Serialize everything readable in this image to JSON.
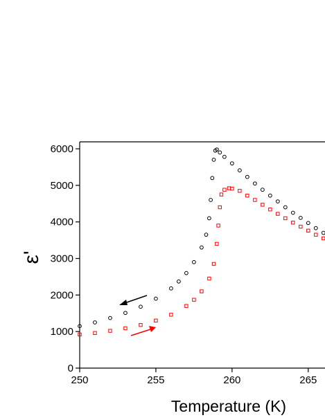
{
  "chart_data": {
    "type": "scatter",
    "xlabel": "Temperature (K)",
    "ylabel": "ε'",
    "xlim": [
      250,
      266.1
    ],
    "ylim": [
      0,
      6190
    ],
    "xticks": [
      250,
      255,
      260,
      265
    ],
    "yticks": [
      0,
      1000,
      2000,
      3000,
      4000,
      5000,
      6000
    ],
    "series": [
      {
        "color": "#000000",
        "marker": "circle",
        "x": [
          250,
          251,
          252,
          253,
          254,
          255,
          256,
          256.5,
          257,
          257.5,
          258,
          258.3,
          258.5,
          258.6,
          258.7,
          258.8,
          258.9,
          259,
          259.2,
          259.5,
          260,
          260.5,
          261,
          261.5,
          262,
          262.5,
          263,
          263.5,
          264,
          264.5,
          265,
          265.5,
          266
        ],
        "values": [
          1150,
          1250,
          1370,
          1510,
          1680,
          1900,
          2180,
          2370,
          2600,
          2900,
          3300,
          3650,
          4100,
          4600,
          5200,
          5700,
          5950,
          5980,
          5900,
          5780,
          5600,
          5410,
          5230,
          5050,
          4880,
          4720,
          4560,
          4400,
          4250,
          4110,
          3970,
          3830,
          3700
        ]
      },
      {
        "color": "#ff0000",
        "marker": "square",
        "x": [
          250,
          251,
          252,
          253,
          254,
          255,
          256,
          257,
          257.5,
          258,
          258.5,
          258.8,
          259,
          259.1,
          259.2,
          259.3,
          259.5,
          259.8,
          260,
          260.5,
          261,
          261.5,
          262,
          262.5,
          263,
          263.5,
          264,
          264.5,
          265,
          265.5,
          266
        ],
        "values": [
          920,
          960,
          1020,
          1090,
          1180,
          1300,
          1460,
          1700,
          1870,
          2100,
          2450,
          2850,
          3400,
          3900,
          4400,
          4750,
          4880,
          4920,
          4910,
          4850,
          4720,
          4600,
          4470,
          4340,
          4220,
          4100,
          3980,
          3870,
          3760,
          3650,
          3550
        ]
      }
    ]
  }
}
